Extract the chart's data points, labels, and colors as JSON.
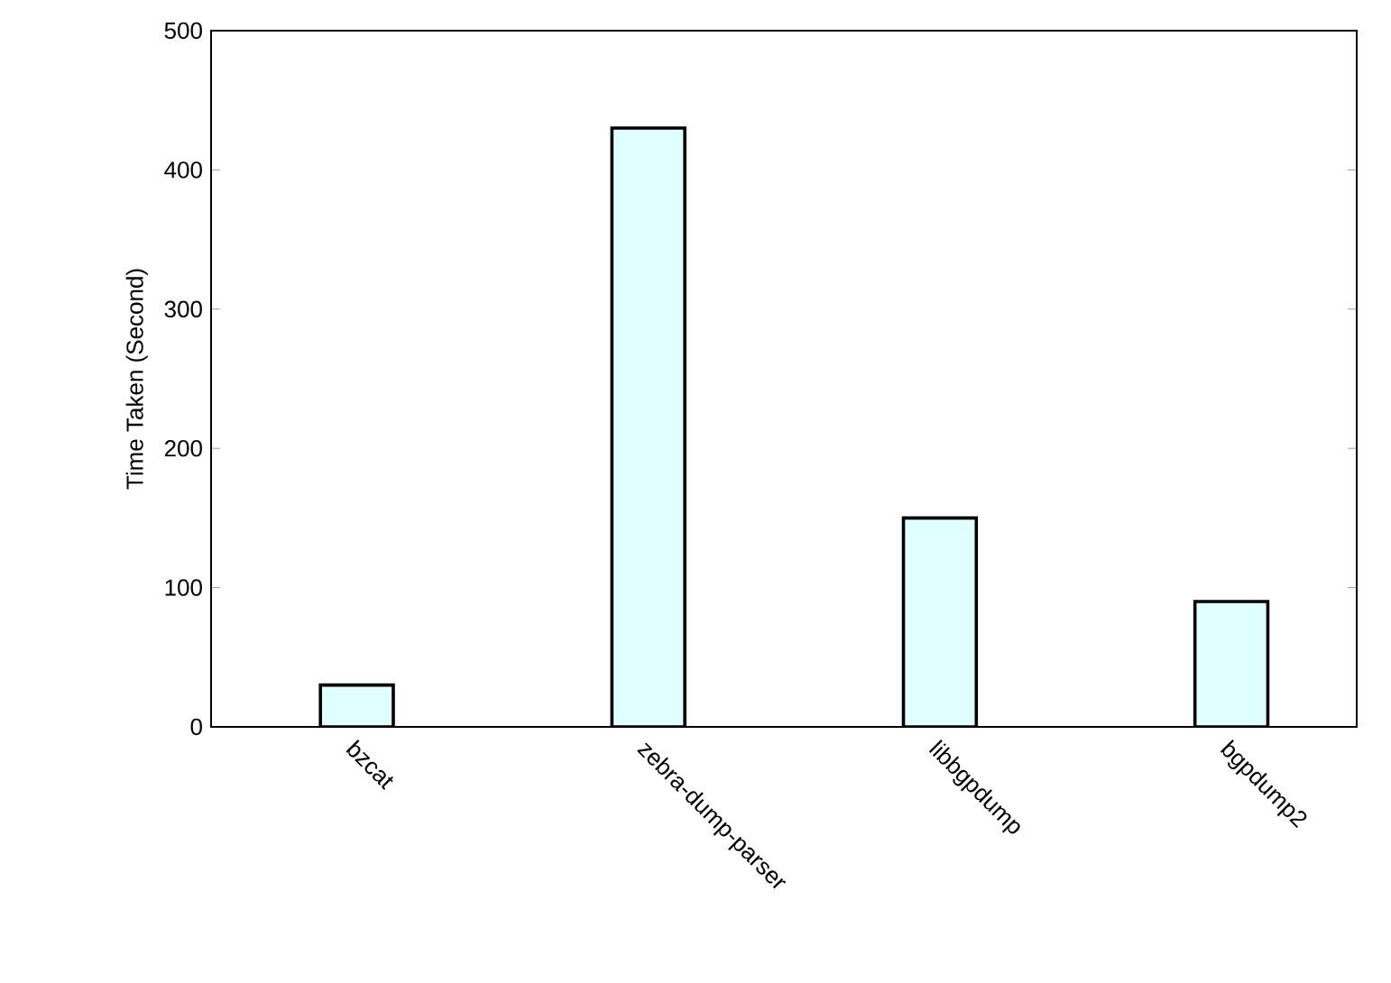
{
  "chart_data": {
    "type": "bar",
    "ylabel": "Time Taken (Second)",
    "categories": [
      "bzcat",
      "zebra-dump-parser",
      "libbgpdump",
      "bgpdump2"
    ],
    "values": [
      30,
      430,
      150,
      90
    ],
    "color": "#e0ffff",
    "ylim": [
      0,
      500
    ],
    "yticks": [
      0,
      100,
      200,
      300,
      400,
      500
    ]
  }
}
